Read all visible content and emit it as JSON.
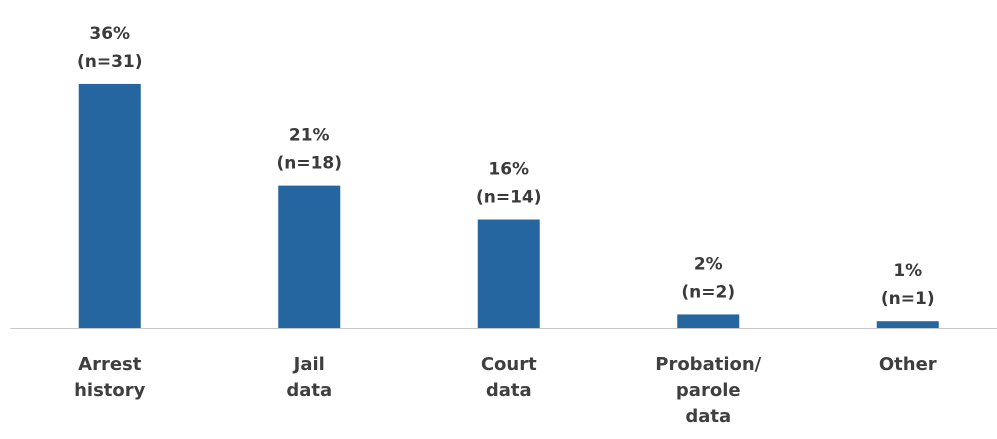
{
  "chart_data": {
    "type": "bar",
    "categories": [
      "Arrest history",
      "Jail data",
      "Court data",
      "Probation/ parole data",
      "Other"
    ],
    "values": [
      36,
      21,
      16,
      2,
      1
    ],
    "value_labels": [
      "36%",
      "21%",
      "16%",
      "2%",
      "1%"
    ],
    "count_labels": [
      "(n=31)",
      "(n=18)",
      "(n=14)",
      "(n=2)",
      "(n=1)"
    ],
    "color": "#2566a0"
  }
}
